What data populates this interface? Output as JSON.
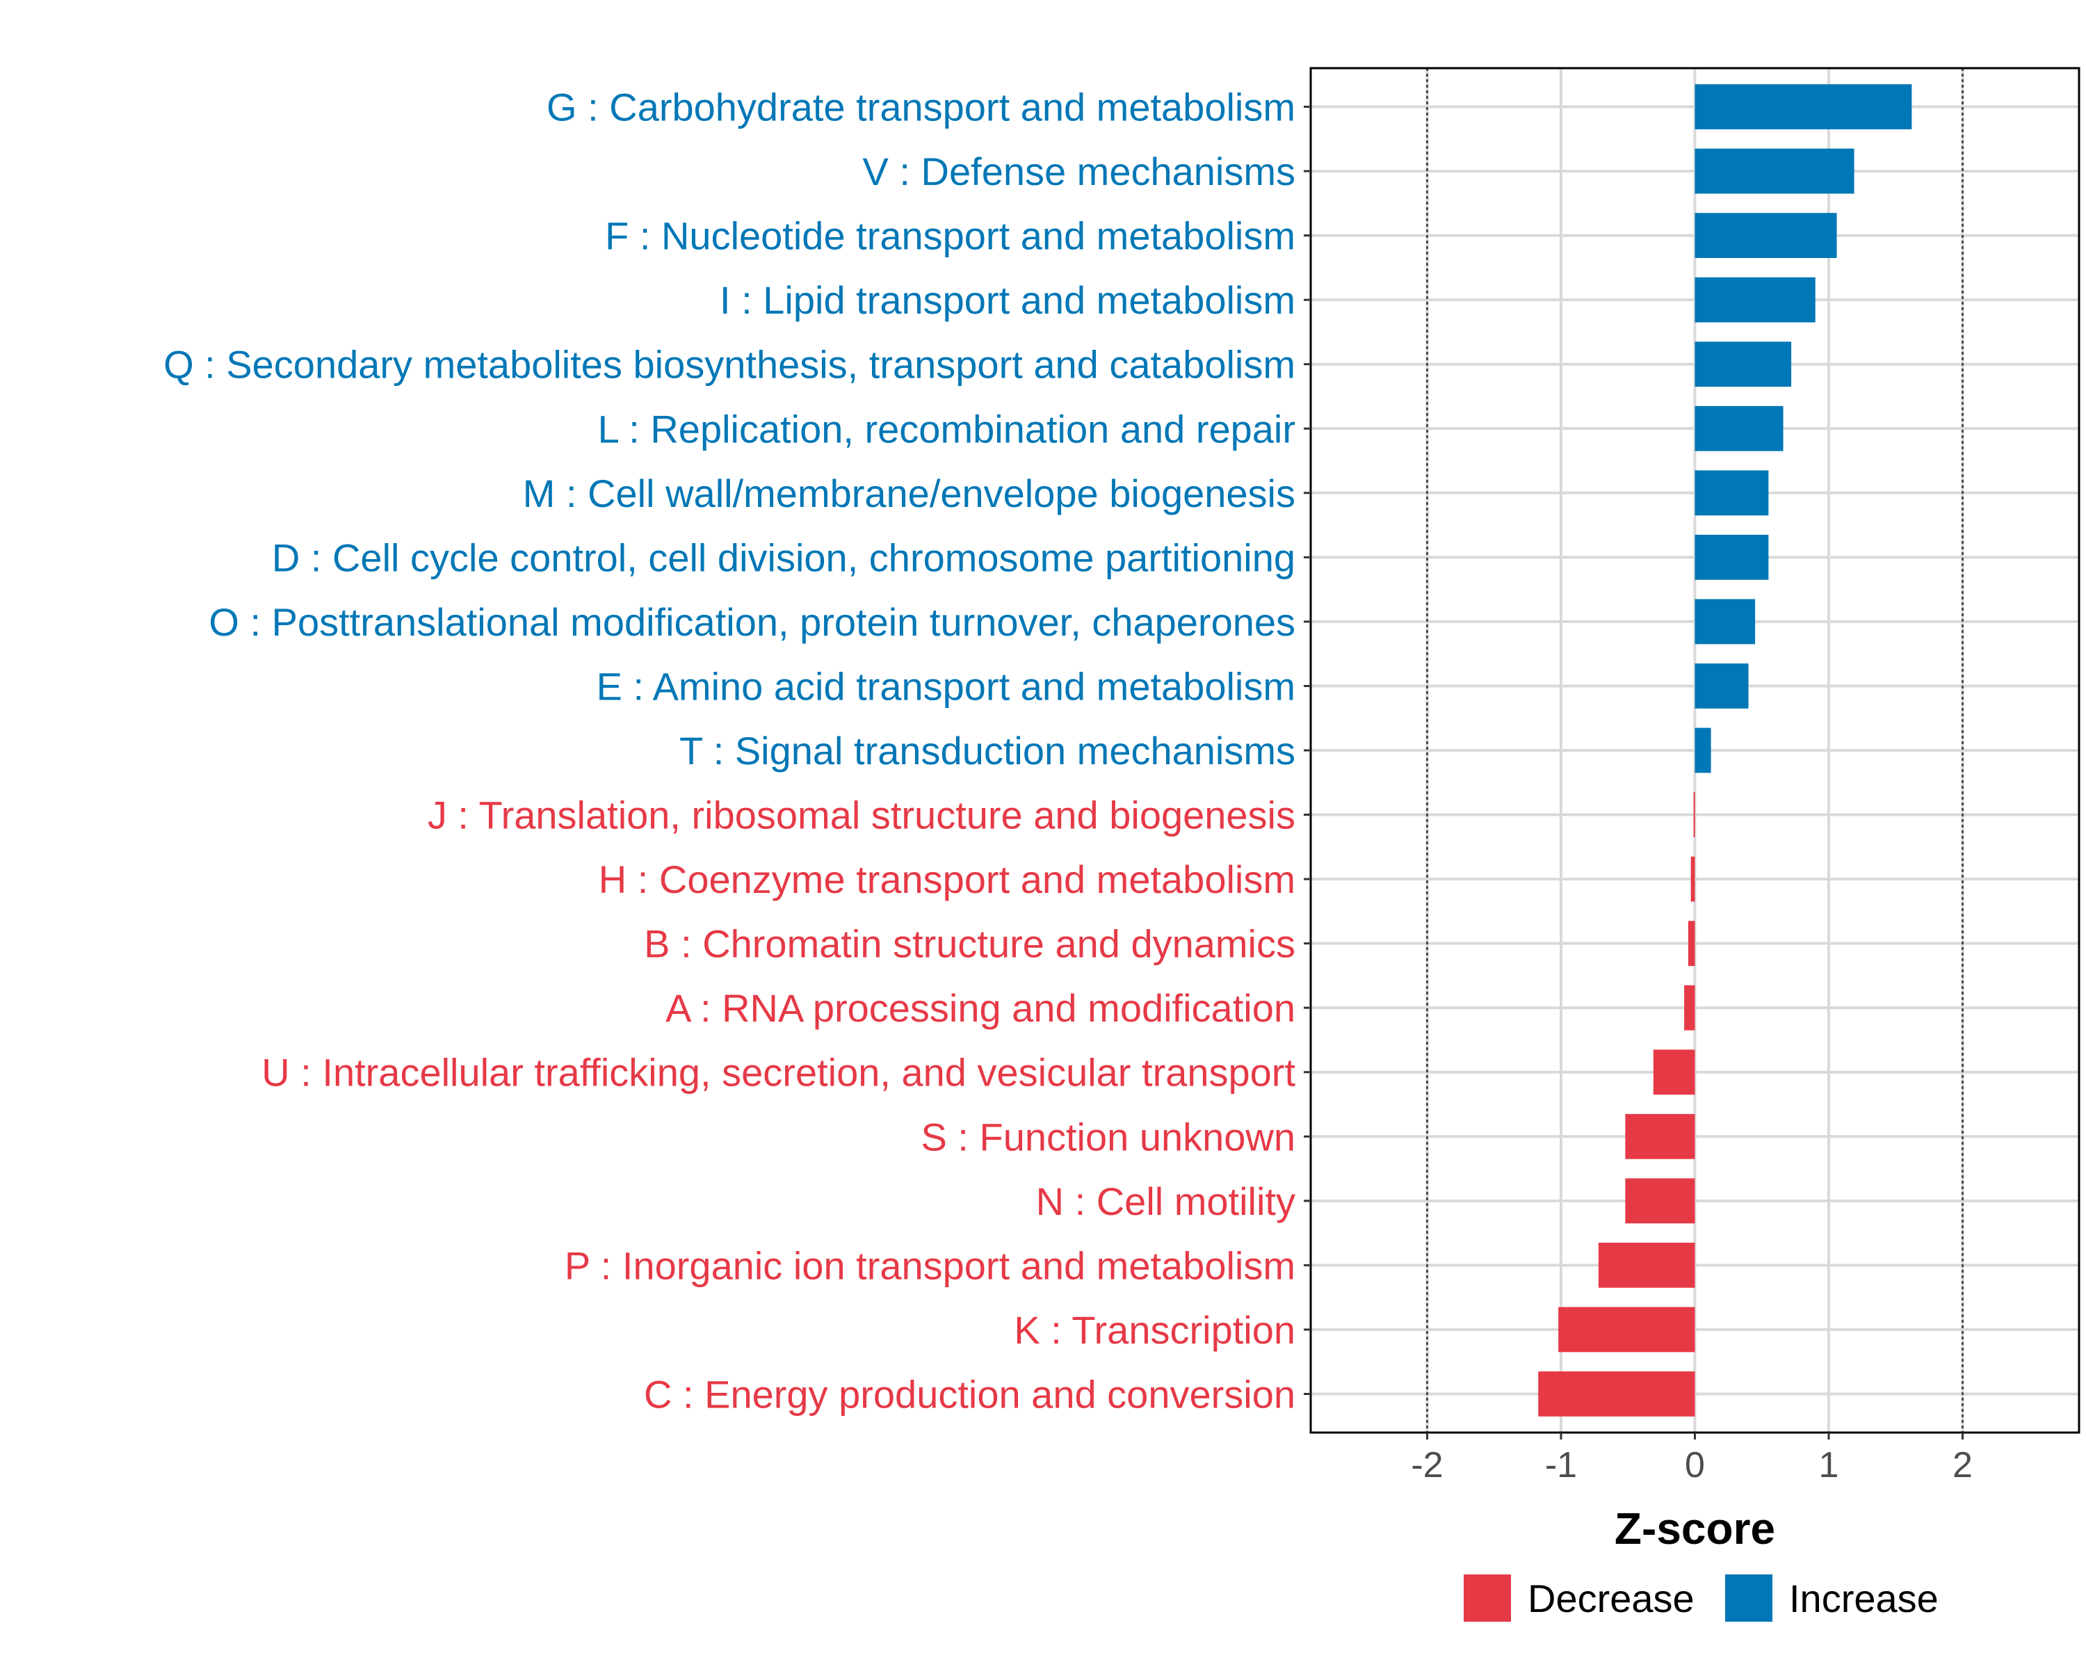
{
  "chart_data": {
    "type": "bar",
    "orientation": "horizontal",
    "xlabel": "Z-score",
    "xlim": [
      -2.87,
      2.87
    ],
    "xticks": [
      -2,
      -1,
      0,
      1,
      2
    ],
    "xtick_labels": [
      "-2",
      "-1",
      "0",
      "1",
      "2"
    ],
    "reference_lines": [
      -2,
      2
    ],
    "grid": true,
    "legend_position": "bottom",
    "colors": {
      "Decrease": "#E63946",
      "Increase": "#0077B6"
    },
    "legend": [
      {
        "name": "Decrease",
        "color": "#E63946"
      },
      {
        "name": "Increase",
        "color": "#0077B6"
      }
    ],
    "categories": [
      "G : Carbohydrate transport and metabolism",
      "V : Defense mechanisms",
      "F : Nucleotide transport and metabolism",
      "I : Lipid transport and metabolism",
      "Q : Secondary metabolites biosynthesis, transport and catabolism",
      "L : Replication, recombination and repair",
      "M : Cell wall/membrane/envelope biogenesis",
      "D : Cell cycle control, cell division, chromosome partitioning",
      "O : Posttranslational modification, protein turnover, chaperones",
      "E : Amino acid transport and metabolism",
      "T : Signal transduction mechanisms",
      "J : Translation, ribosomal structure and biogenesis",
      "H : Coenzyme transport and metabolism",
      "B : Chromatin structure and dynamics",
      "A : RNA processing and modification",
      "U : Intracellular trafficking, secretion, and vesicular transport",
      "S : Function unknown",
      "N : Cell motility",
      "P : Inorganic ion transport and metabolism",
      "K : Transcription",
      "C : Energy production and conversion"
    ],
    "values": [
      1.62,
      1.19,
      1.06,
      0.9,
      0.72,
      0.66,
      0.55,
      0.55,
      0.45,
      0.4,
      0.12,
      -0.01,
      -0.03,
      -0.05,
      -0.08,
      -0.31,
      -0.52,
      -0.52,
      -0.72,
      -1.02,
      -1.17
    ],
    "groups": [
      "Increase",
      "Increase",
      "Increase",
      "Increase",
      "Increase",
      "Increase",
      "Increase",
      "Increase",
      "Increase",
      "Increase",
      "Increase",
      "Decrease",
      "Decrease",
      "Decrease",
      "Decrease",
      "Decrease",
      "Decrease",
      "Decrease",
      "Decrease",
      "Decrease",
      "Decrease"
    ]
  }
}
